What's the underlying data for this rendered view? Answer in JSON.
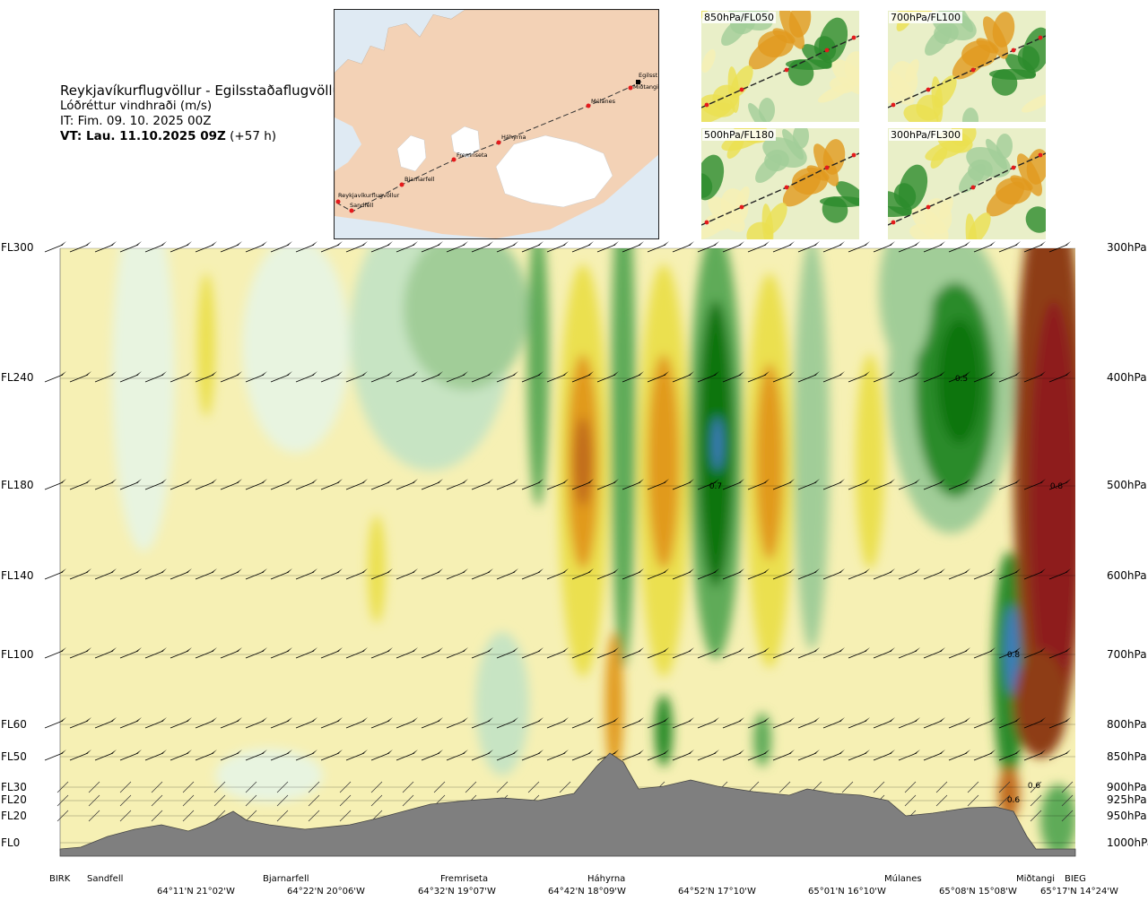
{
  "header": {
    "title": "Reykjavíkurflugvöllur - Egilsstaðaflugvöllur",
    "subtitle": "Lóðréttur vindhraði (m/s)",
    "it": "IT: Fim. 09. 10. 2025 00Z",
    "vt_bold": "VT: Lau. 11.10.2025 09Z",
    "vt_rest": " (+57 h)"
  },
  "map": {
    "waypoints": [
      "Reykjavíkurflugvöllur",
      "Sandfell",
      "Bjarnarfell",
      "Fremriseta",
      "Háhyrna",
      "Múlanes",
      "Egilsst",
      "Miðtangi"
    ],
    "colors": {
      "sea": "#dfeaf3",
      "land": "#f3d2b6",
      "ice": "#ffffff",
      "route": "#333333",
      "point": "#e41a1c"
    }
  },
  "thumbnails": [
    {
      "label": "850hPa/FL050"
    },
    {
      "label": "700hPa/FL100"
    },
    {
      "label": "500hPa/FL180"
    },
    {
      "label": "300hPa/FL300"
    }
  ],
  "chart_data": {
    "type": "heatmap",
    "title": "Lóðréttur vindhraði (m/s)",
    "levels": [
      {
        "fl": "FL300",
        "hpa": "300hPa"
      },
      {
        "fl": "FL240",
        "hpa": "400hPa"
      },
      {
        "fl": "FL180",
        "hpa": "500hPa"
      },
      {
        "fl": "FL140",
        "hpa": "600hPa"
      },
      {
        "fl": "FL100",
        "hpa": "700hPa"
      },
      {
        "fl": "FL60",
        "hpa": "800hPa"
      },
      {
        "fl": "FL50",
        "hpa": "850hPa"
      },
      {
        "fl": "FL30",
        "hpa": "900hPa"
      },
      {
        "fl": "FL20",
        "hpa": "925hPa"
      },
      {
        "fl": "FL20",
        "hpa": "950hPa"
      },
      {
        "fl": "FL0",
        "hpa": "1000hPa"
      }
    ],
    "stations": [
      "BIRK",
      "Sandfell",
      "Bjarnarfell",
      "Fremriseta",
      "Háhyrna",
      "Múlanes",
      "Miðtangi",
      "BIEG"
    ],
    "coordinates": [
      "64°11'N 21°02'W",
      "64°22'N 20°06'W",
      "64°32'N 19°07'W",
      "64°42'N 18°09'W",
      "64°52'N 17°10'W",
      "65°01'N 16°10'W",
      "65°08'N 15°08'W",
      "65°17'N 14°24'W"
    ],
    "value_labels": [
      "0.5",
      "0.7",
      "0.8",
      "0.8",
      "0.6",
      "0.6"
    ],
    "colors": {
      "positive": [
        "#ffffff",
        "#f6f0b4",
        "#ebe050",
        "#e7c20c",
        "#e19a1e",
        "#c06a1a",
        "#8e3e14",
        "#8e1a1a"
      ],
      "negative": [
        "#e8f4e0",
        "#c7e4c3",
        "#a1cd98",
        "#5fab59",
        "#2c8b2c",
        "#087508",
        "#3e7cc0"
      ],
      "terrain": "#7f7f7f"
    }
  }
}
